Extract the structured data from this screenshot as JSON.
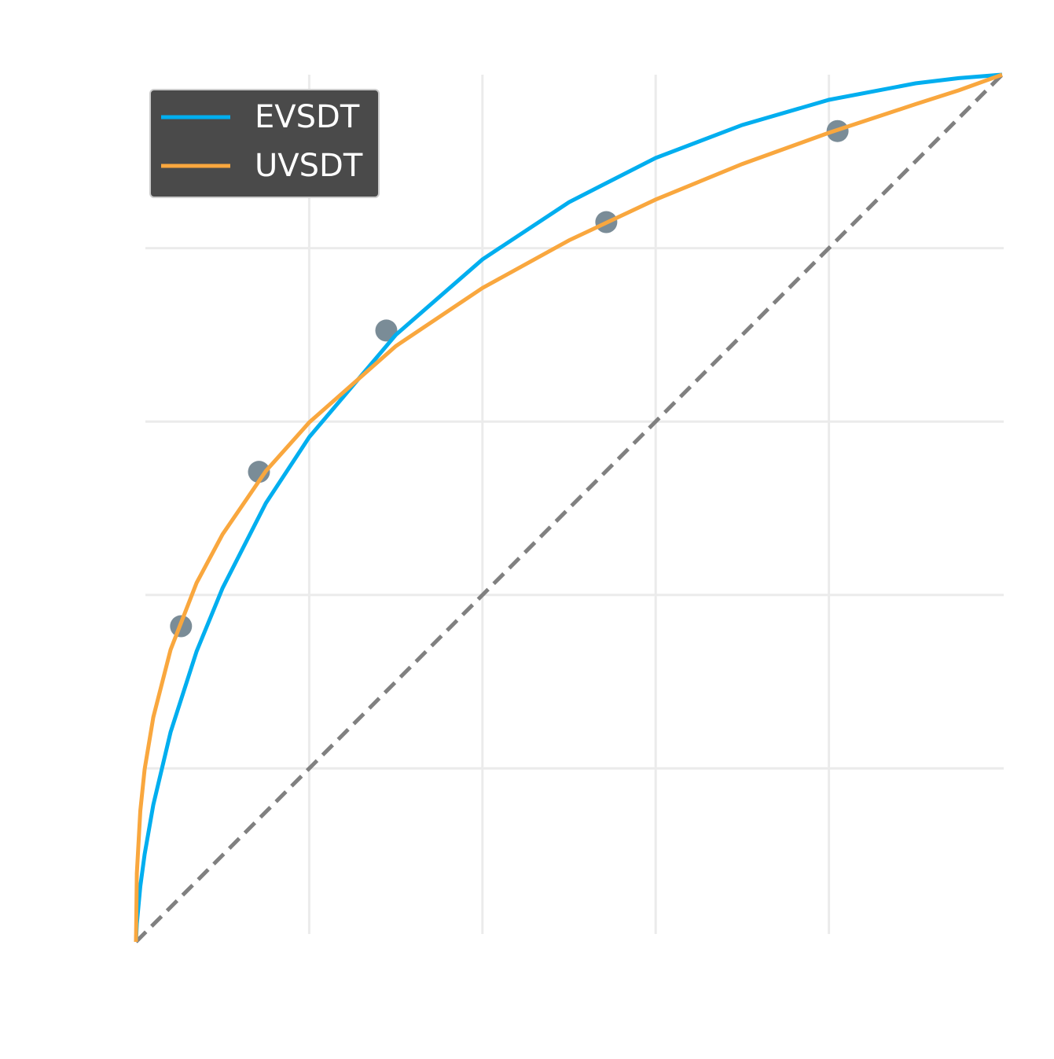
{
  "chart_data": {
    "type": "roc",
    "xlim": [
      0,
      1
    ],
    "ylim": [
      0,
      1
    ],
    "xticks": [
      0.2,
      0.4,
      0.6,
      0.8
    ],
    "yticks": [
      0.2,
      0.4,
      0.6,
      0.8
    ],
    "grid": true,
    "legend": "upper-left",
    "points": {
      "color": "#7a8c97",
      "x": [
        0.052,
        0.142,
        0.289,
        0.543,
        0.81
      ],
      "y": [
        0.364,
        0.542,
        0.705,
        0.83,
        0.935
      ]
    },
    "diagonal": {
      "color": "#808080",
      "x": [
        0,
        1
      ],
      "y": [
        0,
        1
      ]
    },
    "series": [
      {
        "name": "EVSDT",
        "color": "#00aeef",
        "x": [
          0,
          0.001,
          0.005,
          0.01,
          0.02,
          0.04,
          0.07,
          0.1,
          0.15,
          0.2,
          0.3,
          0.4,
          0.5,
          0.6,
          0.7,
          0.8,
          0.9,
          0.95,
          1
        ],
        "values": [
          0,
          0.021,
          0.064,
          0.101,
          0.158,
          0.242,
          0.335,
          0.408,
          0.506,
          0.582,
          0.7,
          0.787,
          0.853,
          0.904,
          0.942,
          0.971,
          0.99,
          0.996,
          1
        ]
      },
      {
        "name": "UVSDT",
        "color": "#f9a73e",
        "x": [
          0,
          0.001,
          0.005,
          0.01,
          0.02,
          0.04,
          0.07,
          0.1,
          0.15,
          0.2,
          0.3,
          0.4,
          0.5,
          0.6,
          0.7,
          0.8,
          0.9,
          0.95,
          1
        ],
        "values": [
          0,
          0.079,
          0.151,
          0.199,
          0.259,
          0.337,
          0.414,
          0.47,
          0.543,
          0.599,
          0.687,
          0.754,
          0.809,
          0.856,
          0.897,
          0.933,
          0.966,
          0.982,
          1
        ]
      }
    ]
  }
}
